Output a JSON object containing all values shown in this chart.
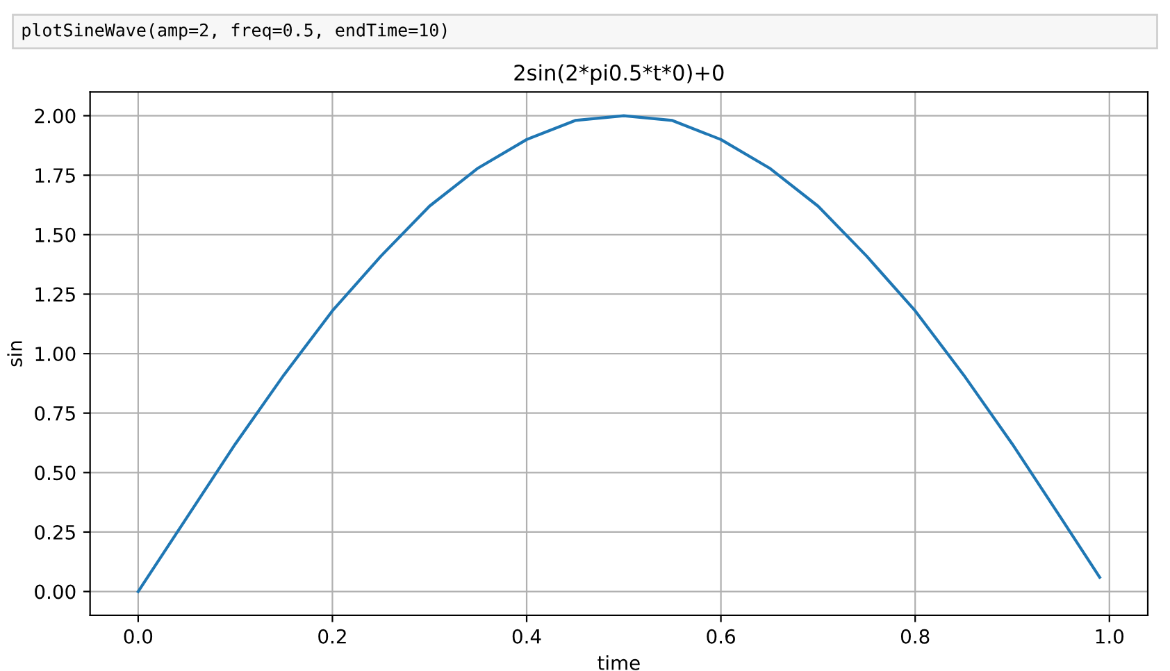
{
  "chart_data": {
    "type": "line",
    "title": "2sin(2*pi0.5*t*0)+0",
    "xlabel": "time",
    "ylabel": "sin",
    "annotations": [
      "plotSineWave(amp=2, freq=0.5, endTime=10)"
    ],
    "x": [
      0,
      0.05,
      0.1,
      0.15,
      0.2,
      0.25,
      0.3,
      0.35,
      0.4,
      0.45,
      0.5,
      0.55,
      0.6,
      0.65,
      0.7,
      0.75,
      0.8,
      0.85,
      0.9,
      0.95,
      0.99
    ],
    "series": [
      {
        "color": "#1f77b4",
        "values": [
          0,
          0.31,
          0.62,
          0.91,
          1.18,
          1.41,
          1.62,
          1.78,
          1.9,
          1.98,
          2.0,
          1.98,
          1.9,
          1.78,
          1.62,
          1.41,
          1.18,
          0.91,
          0.62,
          0.31,
          0.06
        ]
      }
    ],
    "xlim": [
      -0.0495,
      1.0395
    ],
    "ylim": [
      -0.1,
      2.1
    ],
    "xticks": [
      {
        "value": 0,
        "label": "0.0"
      },
      0.2,
      0.4,
      0.6,
      0.8,
      {
        "value": 1,
        "label": "1.0"
      }
    ],
    "yticks": [
      {
        "value": 0,
        "label": "0.00"
      },
      0.25,
      {
        "value": 0.5,
        "label": "0.50"
      },
      0.75,
      {
        "value": 1,
        "label": "1.00"
      },
      1.25,
      {
        "value": 1.5,
        "label": "1.50"
      },
      1.75,
      {
        "value": 2,
        "label": "2.00"
      }
    ],
    "grid": true,
    "legend": false
  }
}
